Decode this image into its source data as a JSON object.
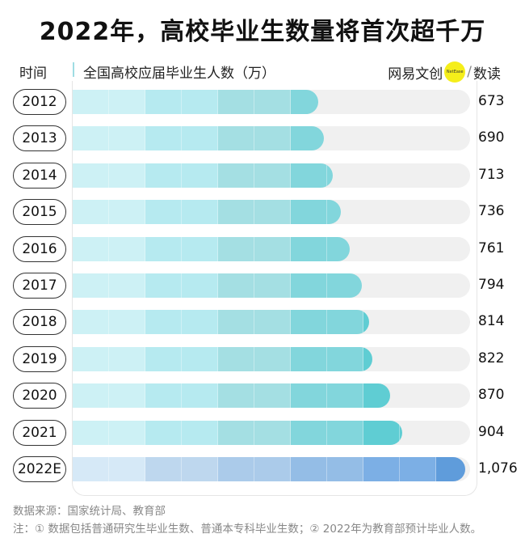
{
  "title": "2022年，高校毕业生数量将首次超千万",
  "header": {
    "time_label": "时间",
    "series_label": "全国高校应届毕业生人数（万）",
    "brand_cn": "网易文创",
    "brand_badge": "NetEase",
    "brand_sep": "/",
    "brand_suffix": "数读"
  },
  "colors": {
    "actual": "#5fcdd3",
    "estimate": "#5f9cdb",
    "track": "#f0f0f0"
  },
  "chart_data": {
    "type": "bar",
    "orientation": "horizontal",
    "title": "2022年，高校毕业生数量将首次超千万",
    "ylabel": "时间",
    "xlabel": "全国高校应届毕业生人数（万）",
    "categories": [
      "2012",
      "2013",
      "2014",
      "2015",
      "2016",
      "2017",
      "2018",
      "2019",
      "2020",
      "2021",
      "2022E"
    ],
    "values": [
      673,
      690,
      713,
      736,
      761,
      794,
      814,
      822,
      870,
      904,
      1076
    ],
    "value_labels": [
      "673",
      "690",
      "713",
      "736",
      "761",
      "794",
      "814",
      "822",
      "870",
      "904",
      "1,076"
    ],
    "xlim": [
      0,
      1090
    ],
    "grid": false,
    "legend": "none"
  },
  "footer": {
    "source": "数据来源：国家统计局、教育部",
    "note": "注：① 数据包括普通研究生毕业生数、普通本专科毕业生数；② 2022年为教育部预计毕业人数。"
  }
}
